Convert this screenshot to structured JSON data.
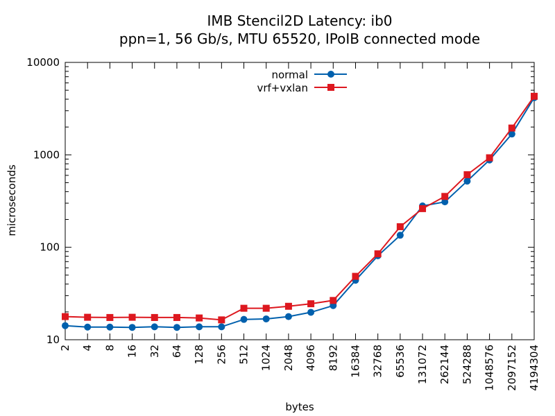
{
  "chart_data": {
    "type": "line",
    "title": "IMB Stencil2D Latency: ib0",
    "subtitle": "ppn=1, 56 Gb/s, MTU 65520, IPoIB connected mode",
    "xlabel": "bytes",
    "ylabel": "microseconds",
    "x_scale": "log2",
    "y_scale": "log10",
    "xlim": [
      2,
      4194304
    ],
    "ylim": [
      10,
      10000
    ],
    "y_ticks": [
      "10",
      "100",
      "1000",
      "10000"
    ],
    "x": [
      2,
      4,
      8,
      16,
      32,
      64,
      128,
      256,
      512,
      1024,
      2048,
      4096,
      8192,
      16384,
      32768,
      65536,
      131072,
      262144,
      524288,
      1048576,
      2097152,
      4194304
    ],
    "x_tick_labels": [
      "2",
      "4",
      "8",
      "16",
      "32",
      "64",
      "128",
      "256",
      "512",
      "1024",
      "2048",
      "4096",
      "8192",
      "16384",
      "32768",
      "65536",
      "131072",
      "262144",
      "524288",
      "1048576",
      "2097152",
      "4194304"
    ],
    "series": [
      {
        "name": "normal",
        "color": "#0060ad",
        "marker": "circle",
        "values": [
          14.2,
          13.7,
          13.7,
          13.6,
          13.8,
          13.6,
          13.8,
          13.8,
          16.6,
          16.8,
          17.8,
          19.8,
          23.4,
          44,
          81,
          135,
          280,
          310,
          520,
          880,
          1680,
          4150
        ]
      },
      {
        "name": "vrf+vxlan",
        "color": "#dd181f",
        "marker": "square",
        "values": [
          17.8,
          17.5,
          17.4,
          17.5,
          17.4,
          17.4,
          17.2,
          16.4,
          21.9,
          21.9,
          23.0,
          24.5,
          26.6,
          48.5,
          85,
          167,
          262,
          355,
          610,
          930,
          1950,
          4300
        ]
      }
    ],
    "legend_position": "top-center",
    "grid": false
  }
}
